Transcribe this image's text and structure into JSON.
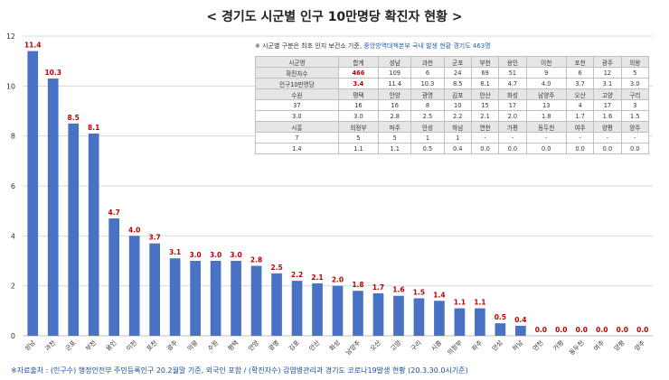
{
  "title": "< 경기도 시군별 인구 10만명당 확진자 현황 >",
  "footer": "※자료출처 : (인구수) 행정안전부 주민등록인구 20.2월말 기준, 외국인 포함 / (확진자수) 감염병관리과 경기도 코로나19발생 현황 (20.3.30.0시기준)",
  "colors": {
    "bar": "#4a72c4",
    "bar_label": "#c00000",
    "grid": "#d9d9d9",
    "footer": "#1a4ea0",
    "table_header": "#e6e6e6"
  },
  "chart_data": {
    "type": "bar",
    "title": "< 경기도 시군별 인구 10만명당 확진자 현황 >",
    "xlabel": "",
    "ylabel": "",
    "ylim": [
      0,
      12
    ],
    "yticks": [
      0,
      2,
      4,
      6,
      8,
      10,
      12
    ],
    "grid": true,
    "categories": [
      "성남",
      "과천",
      "군포",
      "부천",
      "용인",
      "이천",
      "포천",
      "광주",
      "의왕",
      "수원",
      "평택",
      "안양",
      "광명",
      "김포",
      "안산",
      "화성",
      "남양주",
      "오산",
      "고양",
      "구리",
      "시흥",
      "의정부",
      "파주",
      "안성",
      "하남",
      "연천",
      "가평",
      "동두천",
      "여주",
      "양평",
      "양주"
    ],
    "values": [
      11.4,
      10.3,
      8.5,
      8.1,
      4.7,
      4.0,
      3.7,
      3.1,
      3.0,
      3.0,
      3.0,
      2.8,
      2.5,
      2.2,
      2.1,
      2.0,
      1.8,
      1.7,
      1.6,
      1.5,
      1.4,
      1.1,
      1.1,
      0.5,
      0.4,
      0.0,
      0.0,
      0.0,
      0.0,
      0.0,
      0.0
    ],
    "value_labels": [
      "11.4",
      "10.3",
      "8.5",
      "8.1",
      "4.7",
      "4.0",
      "3.7",
      "3.1",
      "3.0",
      "3.0",
      "3.0",
      "2.8",
      "2.5",
      "2.2",
      "2.1",
      "2.0",
      "1.8",
      "1.7",
      "1.6",
      "1.5",
      "1.4",
      "1.1",
      "1.1",
      "0.5",
      "0.4",
      "0.0",
      "0.0",
      "0.0",
      "0.0",
      "0.0",
      "0.0"
    ]
  },
  "table": {
    "note_prefix": "※ 시군별 구분은 최초 인지 보건소 기준, ",
    "note_highlight": "중앙방역대책본부 국내 발생 현황 경기도 463명",
    "rows": [
      [
        "시군명",
        "합계",
        "성남",
        "과천",
        "군포",
        "부천",
        "용인",
        "이천",
        "포천",
        "광주",
        "의왕"
      ],
      [
        "확진자수",
        "466",
        "109",
        "6",
        "24",
        "69",
        "51",
        "9",
        "6",
        "12",
        "5"
      ],
      [
        "인구10만명당",
        "3.4",
        "11.4",
        "10.3",
        "8.5",
        "8.1",
        "4.7",
        "4.0",
        "3.7",
        "3.1",
        "3.0"
      ],
      [
        "수원",
        "평택",
        "안양",
        "광명",
        "김포",
        "안산",
        "화성",
        "남양주",
        "오산",
        "고양",
        "구리"
      ],
      [
        "37",
        "16",
        "16",
        "8",
        "10",
        "15",
        "17",
        "13",
        "4",
        "17",
        "3"
      ],
      [
        "3.0",
        "3.0",
        "2.8",
        "2.5",
        "2.2",
        "2.1",
        "2.0",
        "1.8",
        "1.7",
        "1.6",
        "1.5"
      ],
      [
        "시흥",
        "의정부",
        "파주",
        "안성",
        "하남",
        "연천",
        "가평",
        "동두천",
        "여주",
        "양평",
        "양주"
      ],
      [
        "7",
        "5",
        "5",
        "1",
        "1",
        "-",
        "-",
        "-",
        "-",
        "-",
        "-"
      ],
      [
        "1.4",
        "1.1",
        "1.1",
        "0.5",
        "0.4",
        "0.0",
        "0.0",
        "0.0",
        "0.0",
        "0.0",
        "0.0"
      ]
    ]
  }
}
